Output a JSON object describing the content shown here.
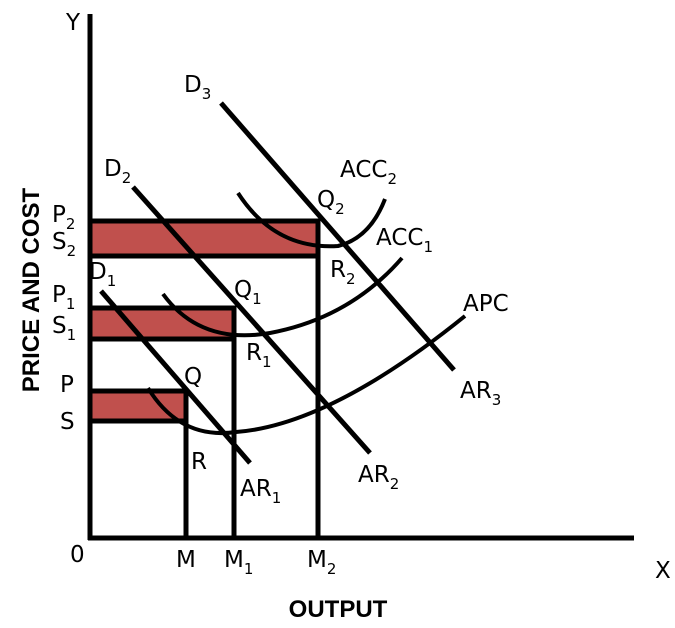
{
  "axes": {
    "y_letter": "Y",
    "x_letter": "X",
    "origin": "0",
    "y_title": "PRICE  AND COST",
    "x_title": "OUTPUT"
  },
  "lines": {
    "d1": {
      "base": "D",
      "sub": "1"
    },
    "d2": {
      "base": "D",
      "sub": "2"
    },
    "d3": {
      "base": "D",
      "sub": "3"
    },
    "ar1": {
      "base": "AR",
      "sub": "1"
    },
    "ar2": {
      "base": "AR",
      "sub": "2"
    },
    "ar3": {
      "base": "AR",
      "sub": "3"
    }
  },
  "curves": {
    "acc1": {
      "base": "ACC",
      "sub": "1"
    },
    "acc2": {
      "base": "ACC",
      "sub": "2"
    },
    "apc": "APC"
  },
  "y_labels": {
    "p": "P",
    "s": "S",
    "p1": {
      "base": "P",
      "sub": "1"
    },
    "s1": {
      "base": "S",
      "sub": "1"
    },
    "p2": {
      "base": "P",
      "sub": "2"
    },
    "s2": {
      "base": "S",
      "sub": "2"
    }
  },
  "x_labels": {
    "m": "M",
    "m1": {
      "base": "M",
      "sub": "1"
    },
    "m2": {
      "base": "M",
      "sub": "2"
    }
  },
  "points": {
    "q": "Q",
    "r": "R",
    "q1": {
      "base": "Q",
      "sub": "1"
    },
    "r1": {
      "base": "R",
      "sub": "1"
    },
    "q2": {
      "base": "Q",
      "sub": "2"
    },
    "r2": {
      "base": "R",
      "sub": "2"
    }
  },
  "colors": {
    "profit_area": "#c0504d",
    "ink": "#000000",
    "background": "#ffffff"
  }
}
